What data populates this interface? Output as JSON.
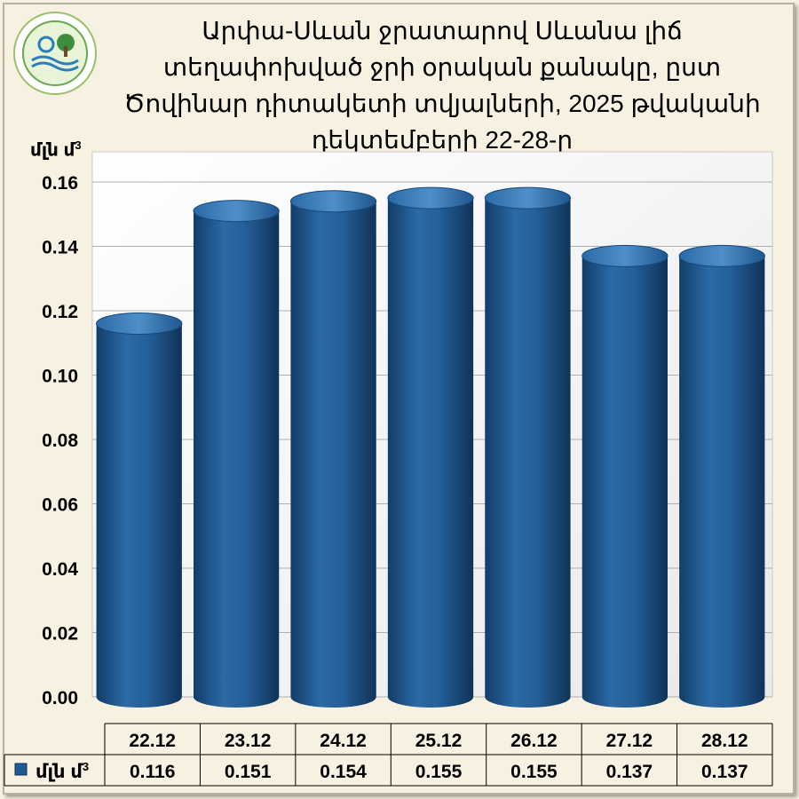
{
  "header": {
    "title": "Արփա-Սևան ջրատարով Սևանա լիճ տեղափոխված ջրի օրական քանակը, ըստ Ծովինար դիտակետի տվյալների, 2025 թվականի  դեկտեմբերի 22-28-ը",
    "logo_icon": "hydromet-center-logo-icon"
  },
  "chart_data": {
    "type": "bar",
    "title": "Արփա-Սևան ջրատարով Սևանա լիճ տեղափոխված ջրի օրական քանակը, ըստ Ծովինար դիտակետի տվյալների, 2025 թվականի  դեկտեմբերի 22-28-ը",
    "ylabel": "մլն մ",
    "ylabel_superscript": "3",
    "ylim": [
      0,
      0.16
    ],
    "yticks": [
      "0.00",
      "0.02",
      "0.04",
      "0.06",
      "0.08",
      "0.10",
      "0.12",
      "0.14",
      "0.16"
    ],
    "categories": [
      "22.12",
      "23.12",
      "24.12",
      "25.12",
      "26.12",
      "27.12",
      "28.12"
    ],
    "series": [
      {
        "name": "մլն մ",
        "name_superscript": "3",
        "values": [
          0.116,
          0.151,
          0.154,
          0.155,
          0.155,
          0.137,
          0.137
        ],
        "value_labels": [
          "0.116",
          "0.151",
          "0.154",
          "0.155",
          "0.155",
          "0.137",
          "0.137"
        ],
        "color": "#1f5a93"
      }
    ],
    "grid": true,
    "legend": "data-table-left",
    "data_table": true
  }
}
